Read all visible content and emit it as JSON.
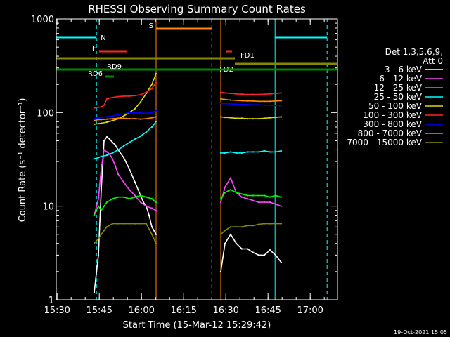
{
  "chart_data": {
    "type": "line",
    "title": "RHESSI Observing Summary Count Rates",
    "xlabel": "Start Time (15-Mar-12 15:29:42)",
    "ylabel": "Count Rate (s⁻¹ detector⁻¹)",
    "yscale": "log",
    "ylim": [
      1,
      1000
    ],
    "xlim_minutes": [
      0,
      100
    ],
    "x_unit": "minutes after 15:29:42",
    "x_ticks": [
      {
        "label": "15:30",
        "t": 0.3
      },
      {
        "label": "15:45",
        "t": 15.3
      },
      {
        "label": "16:00",
        "t": 30.3
      },
      {
        "label": "16:15",
        "t": 45.3
      },
      {
        "label": "16:30",
        "t": 60.3
      },
      {
        "label": "16:45",
        "t": 75.3
      },
      {
        "label": "17:00",
        "t": 90.3
      }
    ],
    "y_ticks": [
      {
        "label": "1000",
        "v": 1000
      },
      {
        "label": "100",
        "v": 100
      },
      {
        "label": "10",
        "v": 10
      },
      {
        "label": "1",
        "v": 1
      }
    ],
    "legend_title": [
      "Det 1,3,5,6,9,",
      "Att 0"
    ],
    "series": [
      {
        "name": "3 - 6 keV",
        "color": "#ffffff",
        "segments": [
          {
            "x": [
              13.5,
              15,
              16,
              17,
              18,
              19,
              20,
              21,
              22,
              24,
              26,
              28,
              30,
              31,
              32,
              33,
              34,
              35.5
            ],
            "y": [
              1.2,
              3,
              15,
              50,
              55,
              52,
              48,
              45,
              40,
              33,
              25,
              18,
              13,
              11,
              10,
              8,
              6,
              5
            ]
          },
          {
            "x": [
              58.5,
              60,
              62,
              64,
              66,
              68,
              70,
              72,
              74,
              76,
              78,
              80
            ],
            "y": [
              2,
              4,
              5,
              4,
              3.5,
              3.5,
              3.2,
              3,
              3,
              3.4,
              3,
              2.5
            ]
          }
        ]
      },
      {
        "name": "6 - 12 keV",
        "color": "#ff44ff",
        "segments": [
          {
            "x": [
              13.5,
              15,
              16,
              17,
              18,
              19,
              20,
              21,
              22,
              24,
              26,
              28,
              30,
              32,
              34,
              35.5
            ],
            "y": [
              8,
              12,
              25,
              40,
              38,
              36,
              32,
              27,
              22,
              18,
              15,
              13,
              11,
              10,
              9.5,
              9
            ]
          },
          {
            "x": [
              58.5,
              60,
              62,
              64,
              66,
              68,
              70,
              72,
              74,
              76,
              78,
              80
            ],
            "y": [
              11,
              16,
              20,
              14,
              12.5,
              12,
              11.5,
              11,
              11,
              11,
              10.5,
              10
            ]
          }
        ]
      },
      {
        "name": "12 - 25 keV",
        "color": "#00ff00",
        "segments": [
          {
            "x": [
              13.5,
              15,
              16,
              17,
              18,
              20,
              22,
              24,
              26,
              28,
              30,
              32,
              34,
              35.5
            ],
            "y": [
              8,
              10,
              9,
              10,
              11,
              12,
              12.5,
              12.5,
              12,
              12.5,
              13,
              12.5,
              12,
              11
            ]
          },
          {
            "x": [
              58.5,
              60,
              62,
              64,
              66,
              68,
              70,
              72,
              74,
              76,
              78,
              80
            ],
            "y": [
              12,
              14,
              15,
              14,
              13.5,
              13,
              13,
              13,
              13,
              12.5,
              13,
              12.5
            ]
          }
        ]
      },
      {
        "name": "25 - 50 keV",
        "color": "#00ffff",
        "segments": [
          {
            "x": [
              13.5,
              15,
              16,
              18,
              20,
              22,
              24,
              26,
              28,
              30,
              32,
              34,
              35.5
            ],
            "y": [
              32,
              33,
              34,
              35,
              37,
              40,
              44,
              48,
              52,
              56,
              62,
              70,
              80
            ]
          },
          {
            "x": [
              58.5,
              60,
              62,
              64,
              66,
              68,
              70,
              72,
              74,
              76,
              78,
              80
            ],
            "y": [
              37,
              37,
              38,
              37,
              37,
              38,
              38,
              38,
              39,
              38,
              38,
              39
            ]
          }
        ]
      },
      {
        "name": "50 - 100 keV",
        "color": "#dddd00",
        "segments": [
          {
            "x": [
              13.5,
              15,
              16,
              18,
              20,
              22,
              24,
              26,
              28,
              30,
              32,
              34,
              35.5
            ],
            "y": [
              75,
              76,
              77,
              79,
              82,
              86,
              92,
              100,
              110,
              130,
              160,
              200,
              260
            ]
          },
          {
            "x": [
              58.5,
              60,
              62,
              64,
              66,
              68,
              70,
              72,
              74,
              76,
              78,
              80
            ],
            "y": [
              90,
              89,
              88,
              87,
              87,
              86,
              86,
              86,
              87,
              88,
              89,
              90
            ]
          }
        ]
      },
      {
        "name": "100 - 300 keV",
        "color": "#ff2222",
        "segments": [
          {
            "x": [
              13.5,
              15,
              16,
              17,
              18,
              20,
              22,
              24,
              26,
              28,
              30,
              32,
              34,
              35.5
            ],
            "y": [
              112,
              114,
              115,
              120,
              140,
              145,
              148,
              150,
              150,
              152,
              155,
              165,
              180,
              210
            ]
          },
          {
            "x": [
              58.5,
              60,
              62,
              64,
              66,
              68,
              70,
              72,
              74,
              76,
              78,
              80
            ],
            "y": [
              165,
              162,
              160,
              158,
              157,
              156,
              156,
              156,
              157,
              158,
              160,
              162
            ]
          }
        ]
      },
      {
        "name": "300 - 800 keV",
        "color": "#0000ff",
        "segments": [
          {
            "x": [
              13.5,
              15,
              16,
              18,
              20,
              22,
              24,
              26,
              28,
              30,
              32,
              34,
              35.5
            ],
            "y": [
              86,
              87,
              88,
              90,
              92,
              95,
              97,
              100,
              100,
              99,
              98,
              100,
              105
            ]
          },
          {
            "x": [
              58.5,
              60,
              62,
              64,
              66,
              68,
              70,
              72,
              74,
              76,
              78,
              80
            ],
            "y": [
              125,
              125,
              124,
              123,
              122,
              122,
              121,
              121,
              120,
              120,
              119,
              119
            ]
          }
        ]
      },
      {
        "name": "800 - 7000 keV",
        "color": "#ff8800",
        "segments": [
          {
            "x": [
              13.5,
              15,
              16,
              18,
              20,
              22,
              24,
              26,
              28,
              30,
              32,
              34,
              35.5
            ],
            "y": [
              82,
              84,
              84,
              85,
              86,
              87,
              87,
              86,
              86,
              85,
              86,
              88,
              90
            ]
          },
          {
            "x": [
              58.5,
              60,
              62,
              64,
              66,
              68,
              70,
              72,
              74,
              76,
              78,
              80
            ],
            "y": [
              140,
              138,
              136,
              135,
              134,
              133,
              133,
              132,
              132,
              132,
              133,
              134
            ]
          }
        ]
      },
      {
        "name": "7000 - 15000 keV",
        "color": "#888800",
        "segments": [
          {
            "x": [
              13.5,
              15,
              16,
              17,
              18,
              20,
              22,
              24,
              26,
              28,
              30,
              32,
              34,
              35.5
            ],
            "y": [
              4,
              4.5,
              5,
              5.5,
              6,
              6.5,
              6.5,
              6.5,
              6.5,
              6.5,
              6.5,
              6.5,
              5,
              4
            ]
          },
          {
            "x": [
              58.5,
              60,
              62,
              64,
              66,
              68,
              70,
              72,
              74,
              76,
              78,
              80
            ],
            "y": [
              5,
              5.5,
              6,
              6,
              6,
              6.2,
              6.2,
              6.4,
              6.5,
              6.5,
              6.5,
              6.5
            ]
          }
        ]
      }
    ],
    "vertical_markers": [
      {
        "t": 0.0,
        "color": "#00ffff",
        "style": "solid"
      },
      {
        "t": 14.3,
        "color": "#00ffff",
        "style": "dashed"
      },
      {
        "t": 35.5,
        "color": "#ff8800",
        "style": "solid"
      },
      {
        "t": 55.3,
        "color": "#ff8800",
        "style": "dashed"
      },
      {
        "t": 58.5,
        "color": "#ff8800",
        "style": "solid"
      },
      {
        "t": 77.8,
        "color": "#00ffff",
        "style": "solid"
      },
      {
        "t": 96.3,
        "color": "#00ffff",
        "style": "dashed"
      }
    ],
    "annotations": [
      {
        "label": "N",
        "color": "#00ffff",
        "t_start": 0,
        "t_end": 14.3,
        "level": 0.03,
        "label_side": "right"
      },
      {
        "label": "N",
        "color": "#00ffff",
        "t_start": 77.8,
        "t_end": 96.3,
        "level": 0.03,
        "label_side": "none"
      },
      {
        "label": "S",
        "color": "#ff8800",
        "t_start": 35.5,
        "t_end": 55.3,
        "level": 0.0,
        "label_side": "left"
      },
      {
        "label": "F",
        "color": "#ff2222",
        "t_start": 15.2,
        "t_end": 25.2,
        "level": 0.08,
        "label_side": "left"
      },
      {
        "label": "",
        "color": "#ff2222",
        "t_start": 60.5,
        "t_end": 62.5,
        "level": 0.08,
        "label_side": "none"
      },
      {
        "label": "FD1",
        "color": "#888800",
        "t_start": 0,
        "t_end": 63.5,
        "level": 0.105,
        "label_side": "right-below"
      },
      {
        "label": "FD2",
        "color": "#888800",
        "t_start": 63.5,
        "t_end": 100,
        "level": 0.125,
        "label_side": "left-below"
      },
      {
        "label": "RD9",
        "color": "#008800",
        "t_start": 0,
        "t_end": 100,
        "level": 0.145,
        "label_side": "above-at-18"
      },
      {
        "label": "RD6",
        "color": "#008800",
        "t_start": 17.5,
        "t_end": 20.5,
        "level": 0.17,
        "label_side": "left"
      }
    ],
    "footer_date": "19-Oct-2021 15:05"
  }
}
